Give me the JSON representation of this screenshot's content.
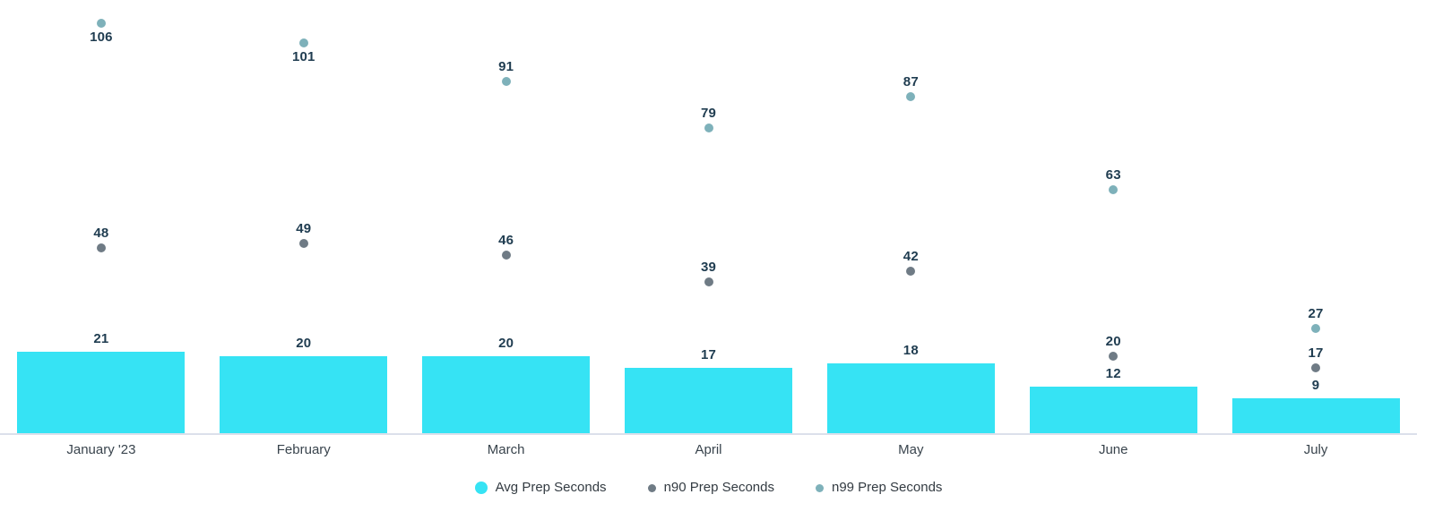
{
  "chart_data": {
    "type": "bar",
    "subtype": "bar-with-scatter-overlay",
    "title": "",
    "xlabel": "",
    "ylabel": "",
    "categories": [
      "January '23",
      "February",
      "March",
      "April",
      "May",
      "June",
      "July"
    ],
    "series": [
      {
        "name": "Avg Prep Seconds",
        "type": "bar",
        "color": "#36E3F4",
        "values": [
          21,
          20,
          20,
          17,
          18,
          12,
          9
        ]
      },
      {
        "name": "n90 Prep Seconds",
        "type": "scatter",
        "color": "#6F7B85",
        "values": [
          48,
          49,
          46,
          39,
          42,
          20,
          17
        ]
      },
      {
        "name": "n99 Prep Seconds",
        "type": "scatter",
        "color": "#7EB1BA",
        "values": [
          106,
          101,
          91,
          79,
          87,
          63,
          27
        ]
      }
    ],
    "ylim": [
      0,
      112
    ],
    "grid": false,
    "y_axis_visible": false,
    "data_labels": true,
    "legend_position": "bottom",
    "n99_labels_below_indices": [
      0,
      1
    ],
    "colors": {
      "data_label": "#1F3C50",
      "x_label": "#39444D",
      "legend_text": "#333B42",
      "axis_line": "#DCE0EB",
      "background": "#FFFFFF"
    }
  }
}
